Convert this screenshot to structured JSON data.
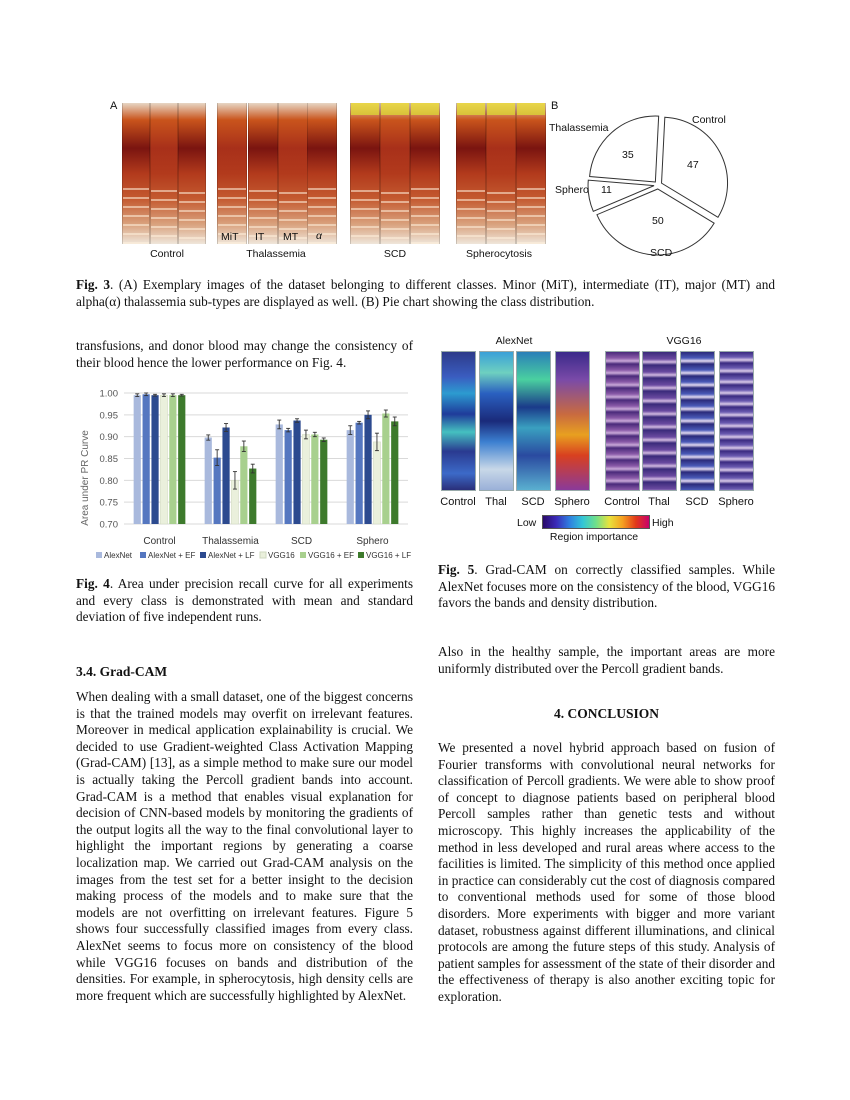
{
  "fig3": {
    "panel_a_label": "A",
    "panel_b_label": "B",
    "groups": [
      "Control",
      "Thalassemia",
      "SCD",
      "Spherocytosis"
    ],
    "subtypes": [
      "MiT",
      "IT",
      "MT",
      "α"
    ],
    "pie": {
      "slices": [
        {
          "label": "Control",
          "value": 47,
          "value_text": "47"
        },
        {
          "label": "SCD",
          "value": 50,
          "value_text": "50"
        },
        {
          "label": "Sphero",
          "value": 11,
          "value_text": "11"
        },
        {
          "label": "Thalassemia",
          "value": 35,
          "value_text": "35"
        }
      ]
    },
    "caption_prefix": "Fig. 3",
    "caption_text": ". (A) Exemplary images of the dataset belonging to different classes. Minor (MiT), intermediate (IT), major (MT) and alpha(α) thalassemia sub-types are displayed as well. (B) Pie chart showing the class distribution."
  },
  "left_top_para": "transfusions, and donor blood may change the consistency of their blood hence the lower performance on Fig. 4.",
  "chart_data": {
    "type": "bar",
    "title": "",
    "ylabel": "Area under PR Curve",
    "xlabel": "",
    "ylim": [
      0.7,
      1.0
    ],
    "yticks": [
      "0.70",
      "0.75",
      "0.80",
      "0.85",
      "0.90",
      "0.95",
      "1.00"
    ],
    "categories": [
      "Control",
      "Thalassemia",
      "SCD",
      "Sphero"
    ],
    "legend_placement": "bottom",
    "grid": true,
    "series": [
      {
        "name": "AlexNet",
        "color": "#a9b9dd",
        "values": [
          0.995,
          0.898,
          0.928,
          0.915
        ],
        "errors": [
          0.003,
          0.006,
          0.01,
          0.01
        ]
      },
      {
        "name": "AlexNet + EF",
        "color": "#5577c0",
        "values": [
          0.997,
          0.852,
          0.915,
          0.932
        ],
        "errors": [
          0.003,
          0.018,
          0.004,
          0.003
        ]
      },
      {
        "name": "AlexNet + LF",
        "color": "#2c4a8f",
        "values": [
          0.995,
          0.921,
          0.937,
          0.95
        ],
        "errors": [
          0.002,
          0.009,
          0.004,
          0.009
        ]
      },
      {
        "name": "VGG16",
        "color": "#eaf0dc",
        "values": [
          0.995,
          0.8,
          0.905,
          0.888
        ],
        "errors": [
          0.003,
          0.02,
          0.01,
          0.02
        ]
      },
      {
        "name": "VGG16 + EF",
        "color": "#a8d08e",
        "values": [
          0.995,
          0.878,
          0.905,
          0.953
        ],
        "errors": [
          0.003,
          0.012,
          0.005,
          0.008
        ]
      },
      {
        "name": "VGG16 + LF",
        "color": "#3d7a2c",
        "values": [
          0.995,
          0.827,
          0.893,
          0.935
        ],
        "errors": [
          0.002,
          0.01,
          0.004,
          0.01
        ]
      }
    ]
  },
  "fig4": {
    "caption_prefix": "Fig. 4",
    "caption_text": ". Area under precision recall curve for all experiments and every class is demonstrated with mean and standard deviation of five independent runs."
  },
  "section_34": {
    "heading": "3.4.  Grad-CAM",
    "para": "When dealing with a small dataset, one of the biggest concerns is that the trained models may overfit on irrelevant features. Moreover in medical application explainability is crucial. We decided to use Gradient-weighted Class Activation Mapping (Grad-CAM) [13], as a simple method to make sure our model is actually taking the Percoll gradient bands into account. Grad-CAM is a method that enables visual explanation for decision of CNN-based models by monitoring the gradients of the output logits all the way to the final convolutional layer to highlight the important regions by generating a coarse localization map. We carried out Grad-CAM analysis on the images from the test set for a better insight to the decision making process of the models and to make sure that the models are not overfitting on irrelevant features. Figure 5 shows four successfully classified images from every class. AlexNet seems to focus more on consistency of the blood while VGG16 focuses on bands and distribution of the densities. For example, in spherocytosis, high density cells are more frequent which are successfully highlighted by AlexNet."
  },
  "fig5": {
    "models": [
      "AlexNet",
      "VGG16"
    ],
    "labels": [
      "Control",
      "Thal",
      "SCD",
      "Sphero",
      "Control",
      "Thal",
      "SCD",
      "Sphero"
    ],
    "colorbar_low": "Low",
    "colorbar_high": "High",
    "colorbar_title": "Region importance",
    "caption_prefix": "Fig. 5",
    "caption_text": ". Grad-CAM on correctly classified samples. While AlexNet focuses more on the consistency of the blood, VGG16 favors the bands and density distribution."
  },
  "right_para_1": "Also in the healthy sample, the important areas are more uniformly distributed over the Percoll gradient bands.",
  "conclusion": {
    "heading": "4.  CONCLUSION",
    "para": "We presented a novel hybrid approach based on fusion of Fourier transforms with convolutional neural networks for classification of Percoll gradients. We were able to show proof of concept to diagnose patients based on peripheral blood Percoll samples rather than genetic tests and without microscopy. This highly increases the applicability of the method in less developed and rural areas where access to the facilities is limited. The simplicity of this method once applied in practice can considerably cut the cost of diagnosis compared to conventional methods used for some of those blood disorders. More experiments with bigger and more variant dataset, robustness against different illuminations, and clinical protocols are among the future steps of this study. Analysis of patient samples for assessment of the state of their disorder and the effectiveness of therapy is also another exciting topic for exploration."
  }
}
